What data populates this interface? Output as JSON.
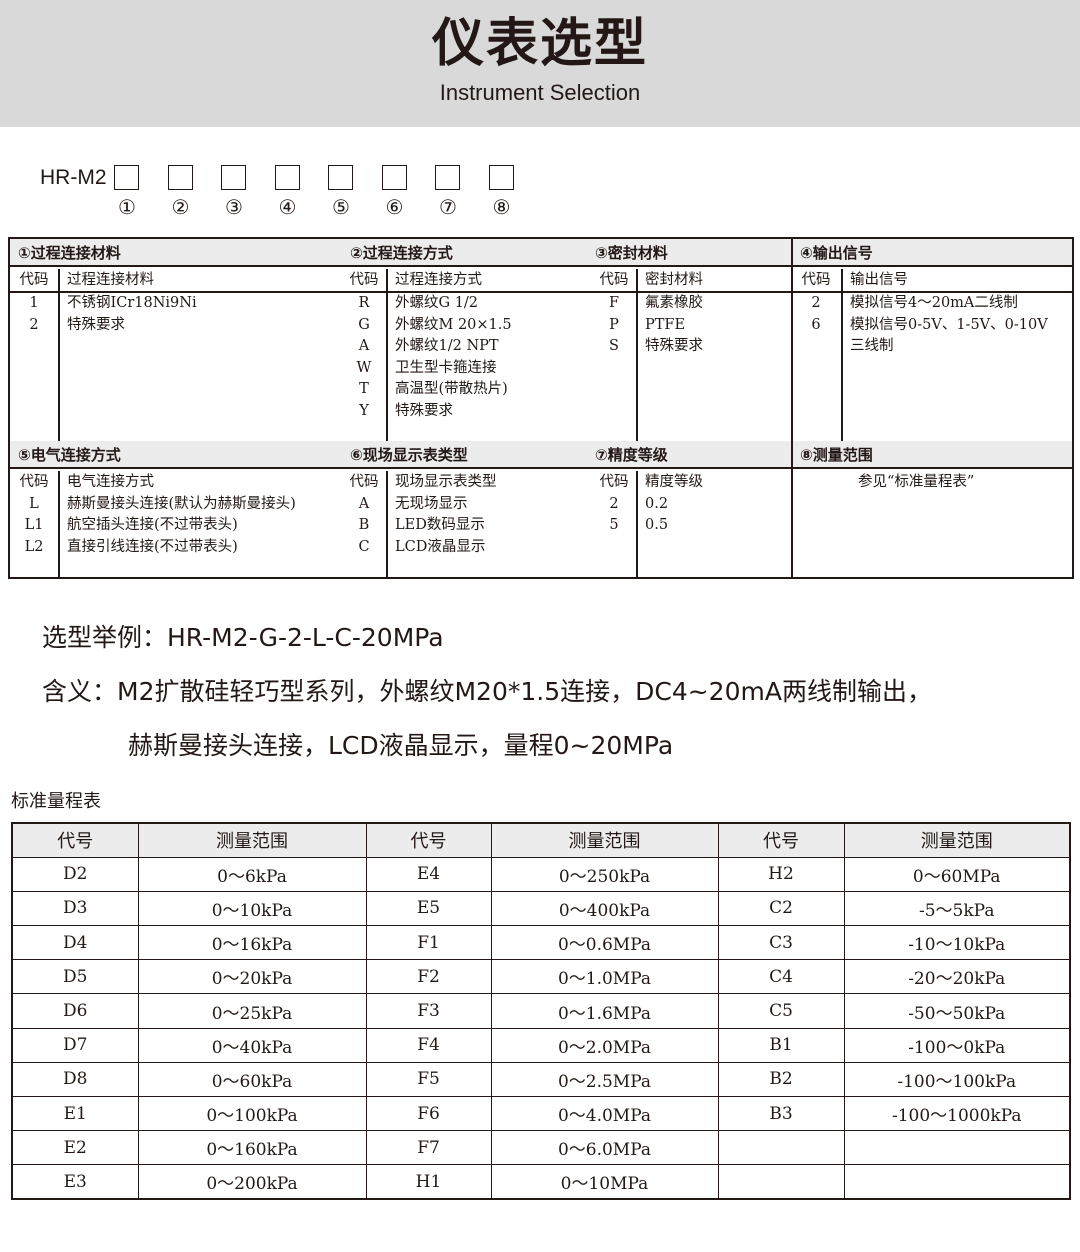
{
  "header": {
    "title": "仪表选型",
    "subtitle": "Instrument Selection"
  },
  "model": {
    "prefix": "HR-M2",
    "positions": [
      "①",
      "②",
      "③",
      "④",
      "⑤",
      "⑥",
      "⑦",
      "⑧"
    ]
  },
  "sections": [
    {
      "title": "①过程连接材料",
      "code_h": "代码",
      "desc_h": "过程连接材料",
      "rows": [
        [
          "1",
          "不锈钢ICr18Ni9Ni"
        ],
        [
          "2",
          "特殊要求"
        ]
      ]
    },
    {
      "title": "②过程连接方式",
      "code_h": "代码",
      "desc_h": "过程连接方式",
      "rows": [
        [
          "R",
          "外螺纹G 1/2"
        ],
        [
          "G",
          "外螺纹M 20×1.5"
        ],
        [
          "A",
          "外螺纹1/2 NPT"
        ],
        [
          "W",
          "卫生型卡箍连接"
        ],
        [
          "T",
          "高温型(带散热片)"
        ],
        [
          "Y",
          "特殊要求"
        ]
      ]
    },
    {
      "title": "③密封材料",
      "code_h": "代码",
      "desc_h": "密封材料",
      "rows": [
        [
          "F",
          "氟素橡胶"
        ],
        [
          "P",
          "PTFE"
        ],
        [
          "S",
          "特殊要求"
        ]
      ]
    },
    {
      "title": "④输出信号",
      "code_h": "代码",
      "desc_h": "输出信号",
      "rows": [
        [
          "2",
          "模拟信号4～20mA二线制"
        ],
        [
          "6",
          "模拟信号0-5V、1-5V、0-10V"
        ],
        [
          "",
          "三线制"
        ]
      ]
    },
    {
      "title": "⑤电气连接方式",
      "code_h": "代码",
      "desc_h": "电气连接方式",
      "rows": [
        [
          "L",
          "赫斯曼接头连接(默认为赫斯曼接头)"
        ],
        [
          "L1",
          "航空插头连接(不过带表头)"
        ],
        [
          "L2",
          "直接引线连接(不过带表头)"
        ]
      ]
    },
    {
      "title": "⑥现场显示表类型",
      "code_h": "代码",
      "desc_h": "现场显示表类型",
      "rows": [
        [
          "A",
          "无现场显示"
        ],
        [
          "B",
          "LED数码显示"
        ],
        [
          "C",
          "LCD液晶显示"
        ]
      ]
    },
    {
      "title": "⑦精度等级",
      "code_h": "代码",
      "desc_h": "精度等级",
      "rows": [
        [
          "2",
          "0.2"
        ],
        [
          "5",
          "0.5"
        ]
      ]
    },
    {
      "title": "⑧测量范围",
      "note": "参见“标准量程表”"
    }
  ],
  "example": {
    "line1": "选型举例：HR-M2-G-2-L-C-20MPa",
    "line2": "含义：M2扩散硅轻巧型系列，外螺纹M20*1.5连接，DC4~20mA两线制输出，",
    "line3": "赫斯曼接头连接，LCD液晶显示，量程0~20MPa"
  },
  "range_table": {
    "title": "标准量程表",
    "headers": [
      "代号",
      "测量范围",
      "代号",
      "测量范围",
      "代号",
      "测量范围"
    ],
    "rows": [
      [
        "D2",
        "0～6kPa",
        "E4",
        "0～250kPa",
        "H2",
        "0～60MPa"
      ],
      [
        "D3",
        "0～10kPa",
        "E5",
        "0～400kPa",
        "C2",
        "-5～5kPa"
      ],
      [
        "D4",
        "0～16kPa",
        "F1",
        "0～0.6MPa",
        "C3",
        "-10～10kPa"
      ],
      [
        "D5",
        "0～20kPa",
        "F2",
        "0～1.0MPa",
        "C4",
        "-20～20kPa"
      ],
      [
        "D6",
        "0～25kPa",
        "F3",
        "0～1.6MPa",
        "C5",
        "-50～50kPa"
      ],
      [
        "D7",
        "0～40kPa",
        "F4",
        "0～2.0MPa",
        "B1",
        "-100～0kPa"
      ],
      [
        "D8",
        "0～60kPa",
        "F5",
        "0～2.5MPa",
        "B2",
        "-100～100kPa"
      ],
      [
        "E1",
        "0～100kPa",
        "F6",
        "0～4.0MPa",
        "B3",
        "-100～1000kPa"
      ],
      [
        "E2",
        "0～160kPa",
        "F7",
        "0～6.0MPa",
        "",
        ""
      ],
      [
        "E3",
        "0～200kPa",
        "H1",
        "0～10MPa",
        "",
        ""
      ]
    ]
  }
}
